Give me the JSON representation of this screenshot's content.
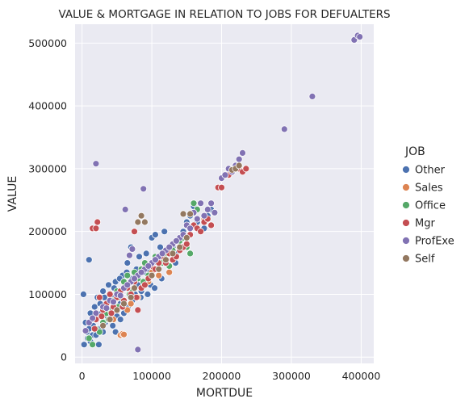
{
  "chart_data": {
    "type": "scatter",
    "title": "VALUE & MORTGAGE IN RELATION TO JOBS FOR DEFUALTERS",
    "xlabel": "MORTDUE",
    "ylabel": "VALUE",
    "xlim": [
      -10000,
      418000
    ],
    "ylim": [
      -10000,
      530000
    ],
    "xticks": [
      0,
      100000,
      200000,
      300000,
      400000
    ],
    "yticks": [
      0,
      100000,
      200000,
      300000,
      400000,
      500000
    ],
    "grid": true,
    "legend_title": "JOB",
    "legend_position": "right",
    "series": [
      {
        "name": "Other",
        "color": "#4c72b0",
        "points": [
          [
            2000,
            100000
          ],
          [
            5000,
            55000
          ],
          [
            7000,
            40000
          ],
          [
            10000,
            155000
          ],
          [
            12000,
            70000
          ],
          [
            15000,
            35000
          ],
          [
            18000,
            80000
          ],
          [
            20000,
            60000
          ],
          [
            22000,
            95000
          ],
          [
            25000,
            45000
          ],
          [
            28000,
            70000
          ],
          [
            30000,
            105000
          ],
          [
            33000,
            55000
          ],
          [
            35000,
            85000
          ],
          [
            38000,
            115000
          ],
          [
            40000,
            60000
          ],
          [
            42000,
            95000
          ],
          [
            45000,
            75000
          ],
          [
            48000,
            120000
          ],
          [
            50000,
            65000
          ],
          [
            52000,
            100000
          ],
          [
            55000,
            85000
          ],
          [
            58000,
            130000
          ],
          [
            60000,
            90000
          ],
          [
            62000,
            110000
          ],
          [
            65000,
            150000
          ],
          [
            68000,
            100000
          ],
          [
            70000,
            175000
          ],
          [
            72000,
            125000
          ],
          [
            75000,
            95000
          ],
          [
            78000,
            140000
          ],
          [
            80000,
            115000
          ],
          [
            82000,
            160000
          ],
          [
            85000,
            105000
          ],
          [
            88000,
            135000
          ],
          [
            90000,
            120000
          ],
          [
            92000,
            165000
          ],
          [
            95000,
            140000
          ],
          [
            98000,
            115000
          ],
          [
            100000,
            190000
          ],
          [
            102000,
            150000
          ],
          [
            105000,
            195000
          ],
          [
            108000,
            160000
          ],
          [
            110000,
            130000
          ],
          [
            112000,
            175000
          ],
          [
            115000,
            155000
          ],
          [
            118000,
            200000
          ],
          [
            120000,
            165000
          ],
          [
            125000,
            145000
          ],
          [
            130000,
            175000
          ],
          [
            135000,
            165000
          ],
          [
            140000,
            190000
          ],
          [
            145000,
            200000
          ],
          [
            150000,
            215000
          ],
          [
            155000,
            225000
          ],
          [
            160000,
            240000
          ],
          [
            165000,
            215000
          ],
          [
            170000,
            245000
          ],
          [
            175000,
            205000
          ],
          [
            180000,
            225000
          ],
          [
            185000,
            235000
          ],
          [
            190000,
            230000
          ],
          [
            3000,
            20000
          ],
          [
            8000,
            30000
          ],
          [
            12000,
            25000
          ],
          [
            16000,
            50000
          ],
          [
            20000,
            35000
          ],
          [
            24000,
            20000
          ],
          [
            30000,
            40000
          ],
          [
            36000,
            65000
          ],
          [
            44000,
            50000
          ],
          [
            48000,
            40000
          ],
          [
            55000,
            60000
          ],
          [
            60000,
            70000
          ],
          [
            66000,
            80000
          ],
          [
            72000,
            90000
          ],
          [
            76000,
            100000
          ],
          [
            84000,
            95000
          ],
          [
            94000,
            100000
          ],
          [
            104000,
            110000
          ],
          [
            114000,
            125000
          ],
          [
            124000,
            135000
          ],
          [
            134000,
            150000
          ],
          [
            10000,
            45000
          ],
          [
            14000,
            60000
          ],
          [
            26000,
            85000
          ],
          [
            32000,
            95000
          ],
          [
            46000,
            110000
          ],
          [
            54000,
            125000
          ],
          [
            64000,
            135000
          ]
        ]
      },
      {
        "name": "Sales",
        "color": "#dd8452",
        "points": [
          [
            55000,
            35000
          ],
          [
            58000,
            37000
          ],
          [
            60000,
            36000
          ],
          [
            45000,
            60000
          ],
          [
            70000,
            85000
          ],
          [
            90000,
            145000
          ],
          [
            95000,
            120000
          ],
          [
            110000,
            130000
          ],
          [
            125000,
            135000
          ],
          [
            150000,
            175000
          ],
          [
            175000,
            220000
          ],
          [
            80000,
            95000
          ],
          [
            65000,
            75000
          ],
          [
            100000,
            135000
          ],
          [
            135000,
            160000
          ]
        ]
      },
      {
        "name": "Office",
        "color": "#55a868",
        "points": [
          [
            10000,
            30000
          ],
          [
            15000,
            20000
          ],
          [
            20000,
            45000
          ],
          [
            30000,
            55000
          ],
          [
            35000,
            70000
          ],
          [
            40000,
            75000
          ],
          [
            45000,
            90000
          ],
          [
            50000,
            105000
          ],
          [
            55000,
            95000
          ],
          [
            60000,
            120000
          ],
          [
            65000,
            130000
          ],
          [
            70000,
            105000
          ],
          [
            75000,
            135000
          ],
          [
            80000,
            125000
          ],
          [
            85000,
            140000
          ],
          [
            90000,
            150000
          ],
          [
            95000,
            130000
          ],
          [
            100000,
            145000
          ],
          [
            105000,
            160000
          ],
          [
            110000,
            155000
          ],
          [
            115000,
            150000
          ],
          [
            120000,
            165000
          ],
          [
            125000,
            145000
          ],
          [
            130000,
            170000
          ],
          [
            140000,
            185000
          ],
          [
            145000,
            190000
          ],
          [
            150000,
            175000
          ],
          [
            155000,
            165000
          ],
          [
            160000,
            245000
          ],
          [
            165000,
            235000
          ],
          [
            25000,
            40000
          ],
          [
            38000,
            60000
          ],
          [
            52000,
            80000
          ],
          [
            68000,
            100000
          ],
          [
            88000,
            120000
          ]
        ]
      },
      {
        "name": "Mgr",
        "color": "#c44e52",
        "points": [
          [
            15000,
            205000
          ],
          [
            20000,
            205000
          ],
          [
            22000,
            215000
          ],
          [
            75000,
            200000
          ],
          [
            20000,
            60000
          ],
          [
            25000,
            95000
          ],
          [
            30000,
            75000
          ],
          [
            35000,
            85000
          ],
          [
            40000,
            100000
          ],
          [
            45000,
            80000
          ],
          [
            50000,
            95000
          ],
          [
            55000,
            105000
          ],
          [
            60000,
            90000
          ],
          [
            65000,
            110000
          ],
          [
            70000,
            100000
          ],
          [
            75000,
            120000
          ],
          [
            80000,
            75000
          ],
          [
            85000,
            110000
          ],
          [
            90000,
            115000
          ],
          [
            95000,
            125000
          ],
          [
            100000,
            145000
          ],
          [
            105000,
            140000
          ],
          [
            110000,
            150000
          ],
          [
            115000,
            160000
          ],
          [
            120000,
            150000
          ],
          [
            125000,
            165000
          ],
          [
            130000,
            155000
          ],
          [
            135000,
            160000
          ],
          [
            140000,
            170000
          ],
          [
            145000,
            175000
          ],
          [
            150000,
            180000
          ],
          [
            155000,
            195000
          ],
          [
            160000,
            210000
          ],
          [
            165000,
            205000
          ],
          [
            170000,
            200000
          ],
          [
            175000,
            215000
          ],
          [
            180000,
            220000
          ],
          [
            185000,
            210000
          ],
          [
            195000,
            270000
          ],
          [
            200000,
            270000
          ],
          [
            220000,
            300000
          ],
          [
            225000,
            300000
          ],
          [
            230000,
            295000
          ],
          [
            235000,
            300000
          ],
          [
            210000,
            290000
          ],
          [
            18000,
            45000
          ],
          [
            28000,
            65000
          ],
          [
            42000,
            70000
          ],
          [
            58000,
            80000
          ],
          [
            78000,
            95000
          ]
        ]
      },
      {
        "name": "ProfExe",
        "color": "#8172b3",
        "points": [
          [
            20000,
            308000
          ],
          [
            62000,
            235000
          ],
          [
            88000,
            268000
          ],
          [
            80000,
            12000
          ],
          [
            290000,
            363000
          ],
          [
            330000,
            415000
          ],
          [
            390000,
            505000
          ],
          [
            395000,
            512000
          ],
          [
            398000,
            510000
          ],
          [
            200000,
            285000
          ],
          [
            205000,
            290000
          ],
          [
            210000,
            300000
          ],
          [
            215000,
            295000
          ],
          [
            220000,
            305000
          ],
          [
            225000,
            315000
          ],
          [
            230000,
            325000
          ],
          [
            185000,
            245000
          ],
          [
            190000,
            230000
          ],
          [
            170000,
            245000
          ],
          [
            160000,
            230000
          ],
          [
            150000,
            210000
          ],
          [
            140000,
            190000
          ],
          [
            130000,
            180000
          ],
          [
            120000,
            170000
          ],
          [
            110000,
            160000
          ],
          [
            100000,
            150000
          ],
          [
            90000,
            140000
          ],
          [
            80000,
            130000
          ],
          [
            70000,
            120000
          ],
          [
            60000,
            110000
          ],
          [
            50000,
            100000
          ],
          [
            40000,
            90000
          ],
          [
            30000,
            80000
          ],
          [
            20000,
            70000
          ],
          [
            10000,
            55000
          ],
          [
            5000,
            42000
          ],
          [
            15000,
            62000
          ],
          [
            35000,
            78000
          ],
          [
            45000,
            88000
          ],
          [
            55000,
            98000
          ],
          [
            65000,
            115000
          ],
          [
            75000,
            125000
          ],
          [
            85000,
            135000
          ],
          [
            95000,
            145000
          ],
          [
            105000,
            155000
          ],
          [
            115000,
            165000
          ],
          [
            125000,
            175000
          ],
          [
            135000,
            185000
          ],
          [
            145000,
            195000
          ],
          [
            155000,
            205000
          ],
          [
            165000,
            220000
          ],
          [
            175000,
            225000
          ],
          [
            180000,
            235000
          ],
          [
            68000,
            162000
          ],
          [
            72000,
            172000
          ]
        ]
      },
      {
        "name": "Self",
        "color": "#937860",
        "points": [
          [
            80000,
            215000
          ],
          [
            85000,
            225000
          ],
          [
            90000,
            215000
          ],
          [
            145000,
            228000
          ],
          [
            155000,
            228000
          ],
          [
            215000,
            298000
          ],
          [
            220000,
            300000
          ],
          [
            225000,
            305000
          ],
          [
            60000,
            85000
          ],
          [
            70000,
            95000
          ],
          [
            75000,
            110000
          ],
          [
            100000,
            130000
          ],
          [
            110000,
            140000
          ],
          [
            120000,
            155000
          ],
          [
            130000,
            165000
          ],
          [
            140000,
            175000
          ],
          [
            50000,
            75000
          ],
          [
            40000,
            60000
          ],
          [
            30000,
            50000
          ],
          [
            150000,
            190000
          ]
        ]
      }
    ]
  }
}
